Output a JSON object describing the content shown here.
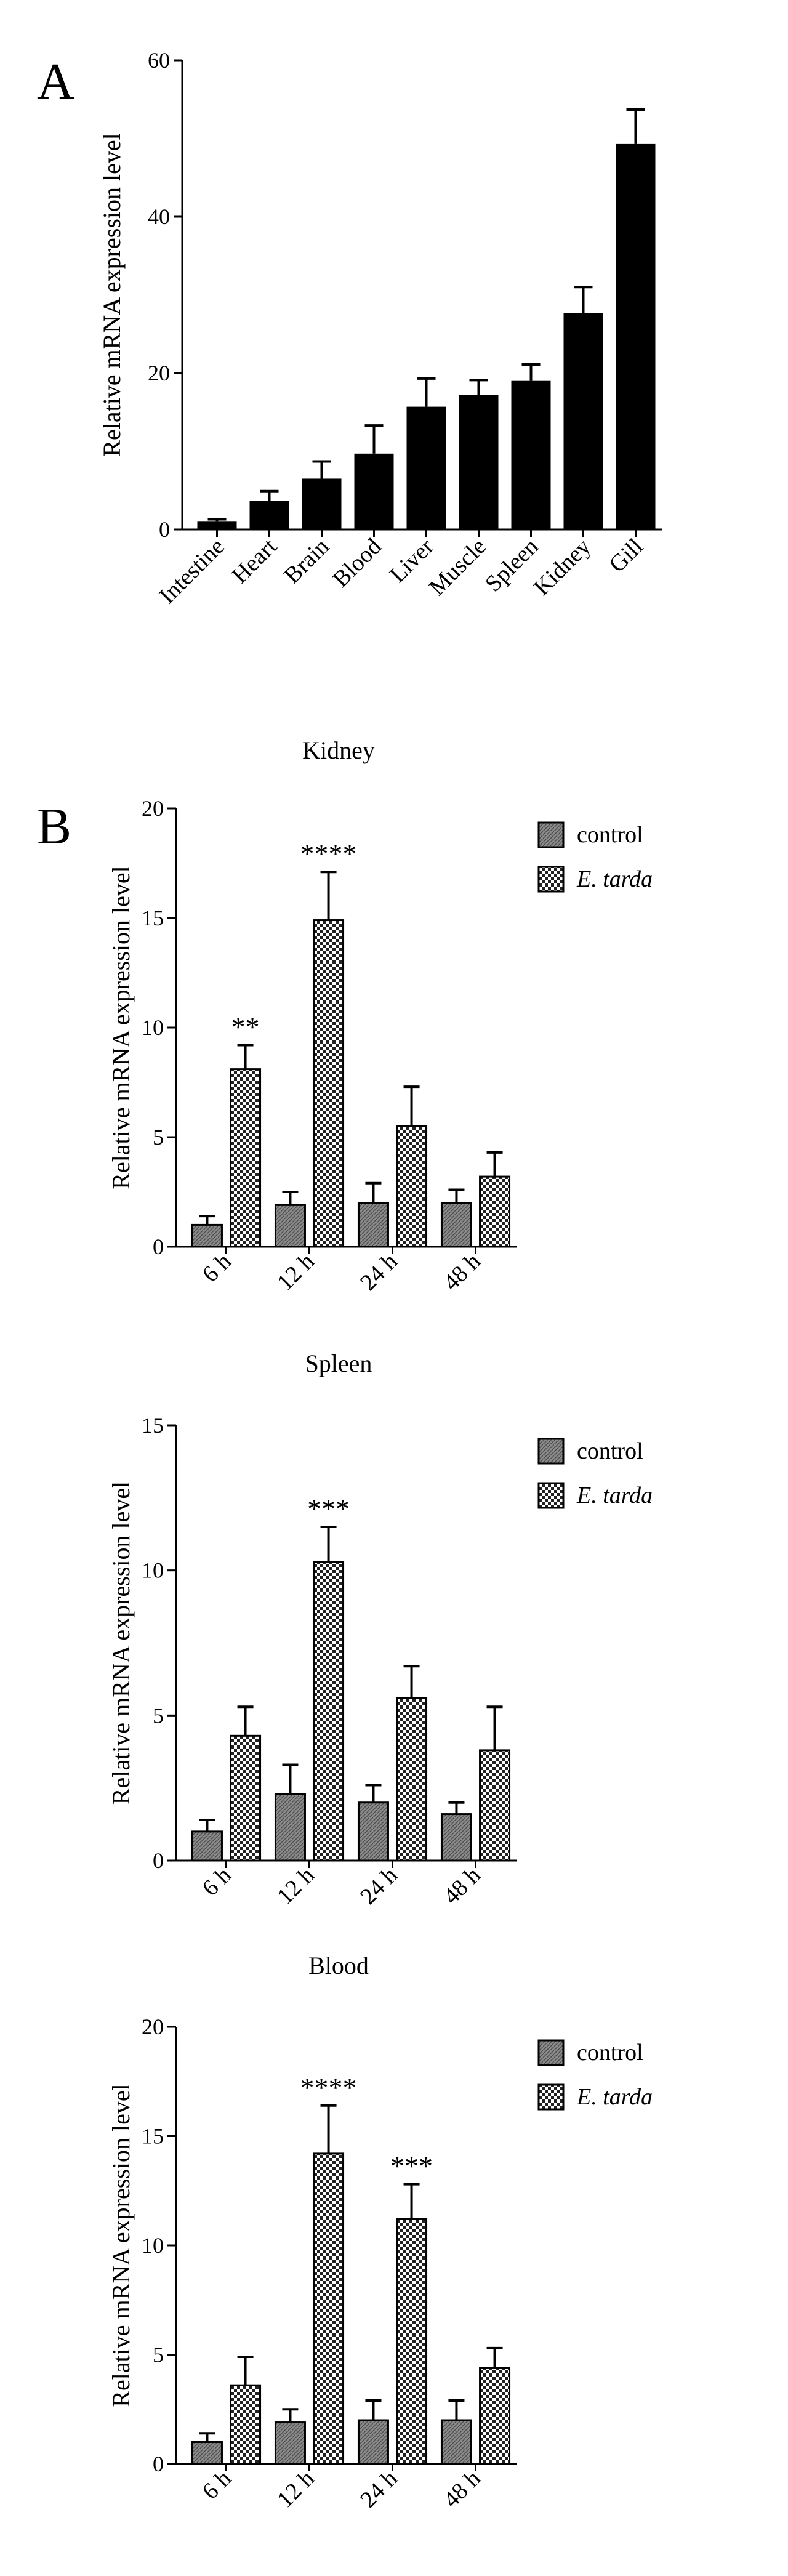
{
  "panels": {
    "a": {
      "letter": "A"
    },
    "b": {
      "letter": "B"
    }
  },
  "chart_data": [
    {
      "type": "bar",
      "title": "",
      "ylabel": "Relative mRNA expression level",
      "xlabel": "",
      "ylim": [
        0,
        60
      ],
      "yticks": [
        0,
        20,
        40,
        60
      ],
      "categories": [
        "Intestine",
        "Heart",
        "Brain",
        "Blood",
        "Liver",
        "Muscle",
        "Spleen",
        "Kidney",
        "Gill"
      ],
      "values": [
        1,
        3.7,
        6.5,
        9.7,
        15.7,
        17.2,
        19,
        27.7,
        49.3
      ],
      "errors": [
        0.3,
        1.2,
        2.2,
        3.6,
        3.6,
        1.9,
        2.1,
        3.3,
        4.4
      ],
      "fill": "#000000"
    },
    {
      "type": "bar",
      "title": "Kidney",
      "ylabel": "Relative mRNA expression level",
      "xlabel": "",
      "ylim": [
        0,
        20
      ],
      "yticks": [
        0,
        5,
        10,
        15,
        20
      ],
      "categories": [
        "6 h",
        "12 h",
        "24 h",
        "48 h"
      ],
      "legend": [
        "control",
        "E. tarda"
      ],
      "series": [
        {
          "name": "control",
          "values": [
            1.0,
            1.9,
            2.0,
            2.0
          ],
          "errors": [
            0.4,
            0.6,
            0.9,
            0.6
          ]
        },
        {
          "name": "E. tarda",
          "values": [
            8.1,
            14.9,
            5.5,
            3.2
          ],
          "errors": [
            1.1,
            2.2,
            1.8,
            1.1
          ]
        }
      ],
      "significance": [
        "**",
        "****",
        "",
        ""
      ]
    },
    {
      "type": "bar",
      "title": "Spleen",
      "ylabel": "Relative mRNA expression level",
      "xlabel": "",
      "ylim": [
        0,
        15
      ],
      "yticks": [
        0,
        5,
        10,
        15
      ],
      "categories": [
        "6 h",
        "12 h",
        "24 h",
        "48 h"
      ],
      "legend": [
        "control",
        "E. tarda"
      ],
      "series": [
        {
          "name": "control",
          "values": [
            1.0,
            2.3,
            2.0,
            1.6
          ],
          "errors": [
            0.4,
            1.0,
            0.6,
            0.4
          ]
        },
        {
          "name": "E. tarda",
          "values": [
            4.3,
            10.3,
            5.6,
            3.8
          ],
          "errors": [
            1.0,
            1.2,
            1.1,
            1.5
          ]
        }
      ],
      "significance": [
        "",
        "***",
        "",
        ""
      ]
    },
    {
      "type": "bar",
      "title": "Blood",
      "ylabel": "Relative mRNA expression level",
      "xlabel": "",
      "ylim": [
        0,
        20
      ],
      "yticks": [
        0,
        5,
        10,
        15,
        20
      ],
      "categories": [
        "6 h",
        "12 h",
        "24 h",
        "48 h"
      ],
      "legend": [
        "control",
        "E. tarda"
      ],
      "series": [
        {
          "name": "control",
          "values": [
            1.0,
            1.9,
            2.0,
            2.0
          ],
          "errors": [
            0.4,
            0.6,
            0.9,
            0.9
          ]
        },
        {
          "name": "E. tarda",
          "values": [
            3.6,
            14.2,
            11.2,
            4.4
          ],
          "errors": [
            1.3,
            2.2,
            1.6,
            0.9
          ]
        }
      ],
      "significance": [
        "",
        "****",
        "***",
        ""
      ]
    }
  ]
}
